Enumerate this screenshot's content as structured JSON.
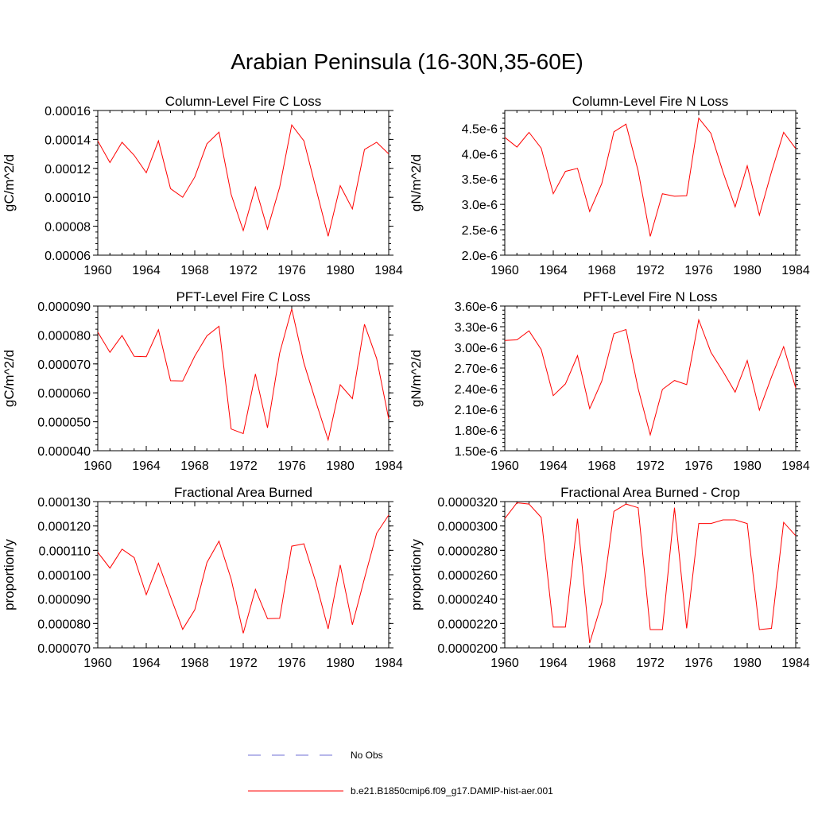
{
  "page_title": "Arabian Peninsula (16-30N,35-60E)",
  "colors": {
    "model": "#ff0000",
    "obs": "#6f6fd6",
    "axis": "#000000"
  },
  "legend": {
    "obs_label": "No Obs",
    "model_label": "b.e21.B1850cmip6.f09_g17.DAMIP-hist-aer.001"
  },
  "chart_data": [
    {
      "type": "line",
      "title": "Column-Level Fire C Loss",
      "ylabel": "gC/m^2/d",
      "xlim": [
        1960,
        1984
      ],
      "ylim": [
        6e-05,
        0.00016
      ],
      "xticks": [
        "1960",
        "1964",
        "1968",
        "1972",
        "1976",
        "1980",
        "1984"
      ],
      "yticks": [
        "0.00006",
        "0.00008",
        "0.00010",
        "0.00012",
        "0.00014",
        "0.00016"
      ],
      "ytick_values": [
        6e-05,
        8e-05,
        0.0001,
        0.00012,
        0.00014,
        0.00016
      ],
      "x": [
        1960,
        1961,
        1962,
        1963,
        1964,
        1965,
        1966,
        1967,
        1968,
        1969,
        1970,
        1971,
        1972,
        1973,
        1974,
        1975,
        1976,
        1977,
        1978,
        1979,
        1980,
        1981,
        1982,
        1983,
        1984
      ],
      "series": [
        {
          "values": [
            0.000139,
            0.000124,
            0.000138,
            0.000129,
            0.000117,
            0.000139,
            0.000106,
            0.0001,
            0.000114,
            0.000137,
            0.000145,
            0.000102,
            7.7e-05,
            0.000107,
            7.8e-05,
            0.000107,
            0.00015,
            0.000139,
            0.000106,
            7.3e-05,
            0.000108,
            9.2e-05,
            0.000133,
            0.000138,
            0.00013
          ]
        }
      ]
    },
    {
      "type": "line",
      "title": "Column-Level Fire N Loss",
      "ylabel": "gN/m^2/d",
      "xlim": [
        1960,
        1984
      ],
      "ylim": [
        2e-06,
        4.85e-06
      ],
      "xticks": [
        "1960",
        "1964",
        "1968",
        "1972",
        "1976",
        "1980",
        "1984"
      ],
      "yticks": [
        "2.0e-6",
        "2.5e-6",
        "3.0e-6",
        "3.5e-6",
        "4.0e-6",
        "4.5e-6"
      ],
      "ytick_values": [
        2e-06,
        2.5e-06,
        3e-06,
        3.5e-06,
        4e-06,
        4.5e-06
      ],
      "x": [
        1960,
        1961,
        1962,
        1963,
        1964,
        1965,
        1966,
        1967,
        1968,
        1969,
        1970,
        1971,
        1972,
        1973,
        1974,
        1975,
        1976,
        1977,
        1978,
        1979,
        1980,
        1981,
        1982,
        1983,
        1984
      ],
      "series": [
        {
          "values": [
            4.32e-06,
            4.13e-06,
            4.42e-06,
            4.11e-06,
            3.21e-06,
            3.65e-06,
            3.71e-06,
            2.86e-06,
            3.41e-06,
            4.43e-06,
            4.58e-06,
            3.66e-06,
            2.37e-06,
            3.21e-06,
            3.16e-06,
            3.17e-06,
            4.7e-06,
            4.4e-06,
            3.64e-06,
            2.95e-06,
            3.76e-06,
            2.79e-06,
            3.64e-06,
            4.42e-06,
            4.1e-06
          ]
        }
      ]
    },
    {
      "type": "line",
      "title": "PFT-Level Fire C Loss",
      "ylabel": "gC/m^2/d",
      "xlim": [
        1960,
        1984
      ],
      "ylim": [
        4e-05,
        9e-05
      ],
      "xticks": [
        "1960",
        "1964",
        "1968",
        "1972",
        "1976",
        "1980",
        "1984"
      ],
      "yticks": [
        "0.000040",
        "0.000050",
        "0.000060",
        "0.000070",
        "0.000080",
        "0.000090"
      ],
      "ytick_values": [
        4e-05,
        5e-05,
        6e-05,
        7e-05,
        8e-05,
        9e-05
      ],
      "x": [
        1960,
        1961,
        1962,
        1963,
        1964,
        1965,
        1966,
        1967,
        1968,
        1969,
        1970,
        1971,
        1972,
        1973,
        1974,
        1975,
        1976,
        1977,
        1978,
        1979,
        1980,
        1981,
        1982,
        1983,
        1984
      ],
      "series": [
        {
          "values": [
            8.1e-05,
            7.4e-05,
            7.98e-05,
            7.26e-05,
            7.25e-05,
            8.18e-05,
            6.42e-05,
            6.41e-05,
            7.27e-05,
            7.97e-05,
            8.3e-05,
            4.75e-05,
            4.59e-05,
            6.65e-05,
            4.79e-05,
            7.37e-05,
            8.9e-05,
            7.03e-05,
            5.68e-05,
            4.37e-05,
            6.28e-05,
            5.8e-05,
            8.37e-05,
            7.19e-05,
            5.1e-05
          ]
        }
      ]
    },
    {
      "type": "line",
      "title": "PFT-Level Fire N Loss",
      "ylabel": "gN/m^2/d",
      "xlim": [
        1960,
        1984
      ],
      "ylim": [
        1.5e-06,
        3.6e-06
      ],
      "xticks": [
        "1960",
        "1964",
        "1968",
        "1972",
        "1976",
        "1980",
        "1984"
      ],
      "yticks": [
        "1.50e-6",
        "1.80e-6",
        "2.10e-6",
        "2.40e-6",
        "2.70e-6",
        "3.00e-6",
        "3.30e-6",
        "3.60e-6"
      ],
      "ytick_values": [
        1.5e-06,
        1.8e-06,
        2.1e-06,
        2.4e-06,
        2.7e-06,
        3e-06,
        3.3e-06,
        3.6e-06
      ],
      "x": [
        1960,
        1961,
        1962,
        1963,
        1964,
        1965,
        1966,
        1967,
        1968,
        1969,
        1970,
        1971,
        1972,
        1973,
        1974,
        1975,
        1976,
        1977,
        1978,
        1979,
        1980,
        1981,
        1982,
        1983,
        1984
      ],
      "series": [
        {
          "values": [
            3.1e-06,
            3.11e-06,
            3.24e-06,
            2.97e-06,
            2.3e-06,
            2.47e-06,
            2.88e-06,
            2.11e-06,
            2.51e-06,
            3.2e-06,
            3.26e-06,
            2.4e-06,
            1.73e-06,
            2.39e-06,
            2.52e-06,
            2.46e-06,
            3.4e-06,
            2.93e-06,
            2.65e-06,
            2.35e-06,
            2.81e-06,
            2.09e-06,
            2.57e-06,
            3.01e-06,
            2.41e-06
          ]
        }
      ]
    },
    {
      "type": "line",
      "title": "Fractional Area Burned",
      "ylabel": "proportion/y",
      "xlim": [
        1960,
        1984
      ],
      "ylim": [
        7e-05,
        0.00013
      ],
      "xticks": [
        "1960",
        "1964",
        "1968",
        "1972",
        "1976",
        "1980",
        "1984"
      ],
      "yticks": [
        "0.000070",
        "0.000080",
        "0.000090",
        "0.000100",
        "0.000110",
        "0.000120",
        "0.000130"
      ],
      "ytick_values": [
        7e-05,
        8e-05,
        9e-05,
        0.0001,
        0.00011,
        0.00012,
        0.00013
      ],
      "x": [
        1960,
        1961,
        1962,
        1963,
        1964,
        1965,
        1966,
        1967,
        1968,
        1969,
        1970,
        1971,
        1972,
        1973,
        1974,
        1975,
        1976,
        1977,
        1978,
        1979,
        1980,
        1981,
        1982,
        1983,
        1984
      ],
      "series": [
        {
          "values": [
            0.0001092,
            0.0001027,
            0.0001105,
            0.000107,
            9.18e-05,
            0.0001047,
            9.1e-05,
            7.76e-05,
            8.56e-05,
            0.000105,
            0.0001138,
            9.82e-05,
            7.6e-05,
            9.4e-05,
            8.2e-05,
            8.21e-05,
            0.0001117,
            0.0001127,
            9.67e-05,
            7.78e-05,
            0.000104,
            7.95e-05,
            9.85e-05,
            0.000117,
            0.0001245
          ]
        }
      ]
    },
    {
      "type": "line",
      "title": "Fractional Area Burned - Crop",
      "ylabel": "proportion/y",
      "xlim": [
        1960,
        1984
      ],
      "ylim": [
        2e-05,
        3.2e-05
      ],
      "xticks": [
        "1960",
        "1964",
        "1968",
        "1972",
        "1976",
        "1980",
        "1984"
      ],
      "yticks": [
        "0.0000200",
        "0.0000220",
        "0.0000240",
        "0.0000260",
        "0.0000280",
        "0.0000300",
        "0.0000320"
      ],
      "ytick_values": [
        2e-05,
        2.2e-05,
        2.4e-05,
        2.6e-05,
        2.8e-05,
        3e-05,
        3.2e-05
      ],
      "x": [
        1960,
        1961,
        1962,
        1963,
        1964,
        1965,
        1966,
        1967,
        1968,
        1969,
        1970,
        1971,
        1972,
        1973,
        1974,
        1975,
        1976,
        1977,
        1978,
        1979,
        1980,
        1981,
        1982,
        1983,
        1984
      ],
      "series": [
        {
          "values": [
            3.06e-05,
            3.19e-05,
            3.18e-05,
            3.07e-05,
            2.17e-05,
            2.17e-05,
            3.06e-05,
            2.04e-05,
            2.37e-05,
            3.12e-05,
            3.18e-05,
            3.15e-05,
            2.15e-05,
            2.15e-05,
            3.15e-05,
            2.16e-05,
            3.02e-05,
            3.02e-05,
            3.05e-05,
            3.05e-05,
            3.02e-05,
            2.15e-05,
            2.16e-05,
            3.03e-05,
            2.92e-05
          ]
        }
      ]
    }
  ]
}
